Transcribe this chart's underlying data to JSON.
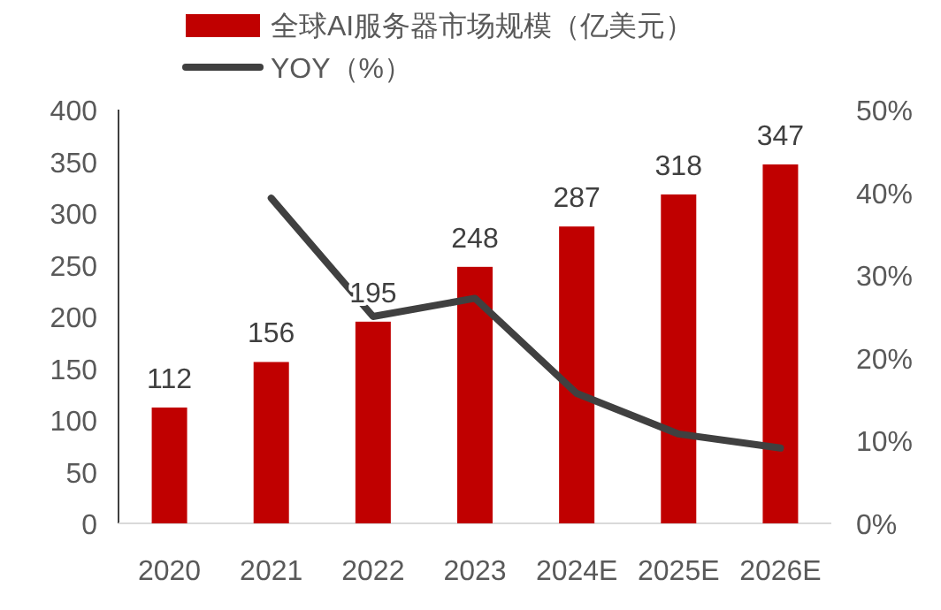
{
  "chart_data": {
    "type": "bar",
    "categories": [
      "2020",
      "2021",
      "2022",
      "2023",
      "2024E",
      "2025E",
      "2026E"
    ],
    "series": [
      {
        "name": "全球AI服务器市场规模（亿美元）",
        "color": "#c00000",
        "values": [
          112,
          156,
          195,
          248,
          287,
          318,
          347
        ],
        "value_labels": [
          "112",
          "156",
          "195",
          "248",
          "287",
          "318",
          "347"
        ]
      },
      {
        "name": "YOY（%）",
        "type": "line",
        "axis": "y2",
        "color": "#404040",
        "values": [
          null,
          39.3,
          25.0,
          27.2,
          15.7,
          10.8,
          9.1
        ]
      }
    ],
    "ylim": [
      0,
      400
    ],
    "yticks": [
      0,
      50,
      100,
      150,
      200,
      250,
      300,
      350,
      400
    ],
    "y2lim": [
      0,
      50
    ],
    "y2ticks": [
      {
        "value": 0,
        "label": "0%"
      },
      {
        "value": 10,
        "label": "10%"
      },
      {
        "value": 20,
        "label": "20%"
      },
      {
        "value": 30,
        "label": "30%"
      },
      {
        "value": 40,
        "label": "40%"
      },
      {
        "value": 50,
        "label": "50%"
      }
    ],
    "legend": "top",
    "grid": false
  }
}
